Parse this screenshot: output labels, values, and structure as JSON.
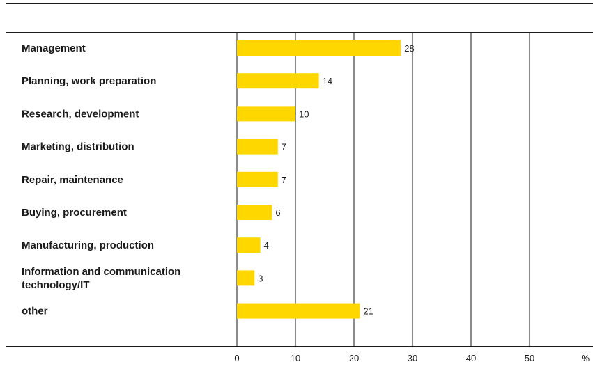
{
  "chart_data": {
    "type": "bar",
    "orientation": "horizontal",
    "categories": [
      "Management",
      "Planning, work preparation",
      "Research, development",
      "Marketing, distribution",
      "Repair, maintenance",
      "Buying, procurement",
      "Manufacturing, production",
      "Information and communication technology/IT",
      "other"
    ],
    "category_lines": [
      [
        "Management"
      ],
      [
        "Planning, work preparation"
      ],
      [
        "Research, development"
      ],
      [
        "Marketing, distribution"
      ],
      [
        "Repair, maintenance"
      ],
      [
        "Buying, procurement"
      ],
      [
        "Manufacturing, production"
      ],
      [
        "Information and communication",
        "technology/IT"
      ],
      [
        "other"
      ]
    ],
    "values": [
      28,
      14,
      10,
      7,
      7,
      6,
      4,
      3,
      21
    ],
    "value_labels": [
      "28",
      "14",
      "10",
      "7",
      "7",
      "6",
      "4",
      "3",
      "21"
    ],
    "xticks": [
      0,
      10,
      20,
      30,
      40,
      50
    ],
    "xtick_labels": [
      "0",
      "10",
      "20",
      "30",
      "40",
      "50"
    ],
    "xunit": "%",
    "xlim": [
      0,
      60
    ],
    "title": "",
    "xlabel": "",
    "ylabel": "",
    "grid": "vertical",
    "bar_color": "#FFD700",
    "rule_color": "#1a1a1a"
  }
}
